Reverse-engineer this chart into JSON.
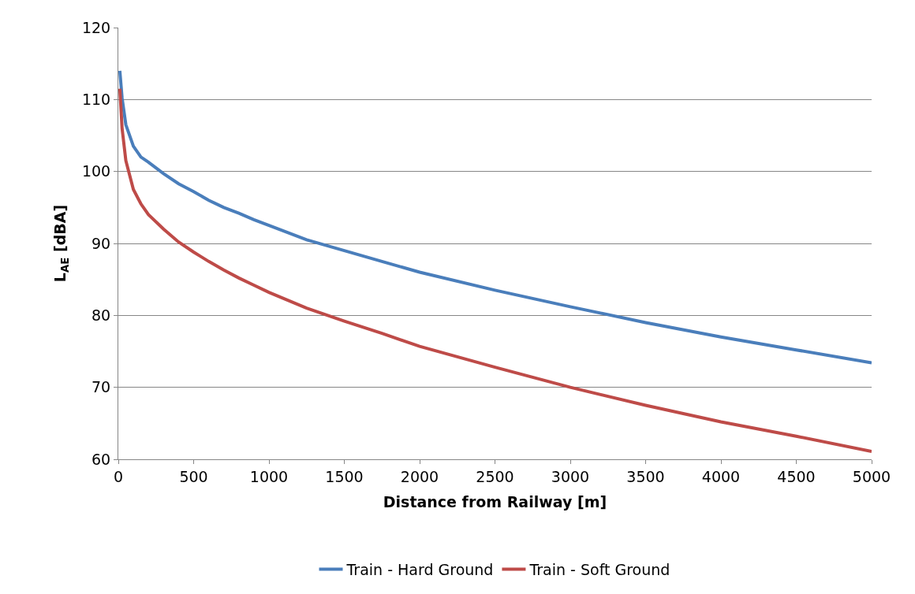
{
  "chart_data": {
    "type": "line",
    "xlabel": "Distance from Railway [m]",
    "ylabel": "L$_{AE}$ [dBA]",
    "xlim": [
      0,
      5000
    ],
    "xticks": [
      0,
      500,
      1000,
      1500,
      2000,
      2500,
      3000,
      3500,
      4000,
      4500,
      5000
    ],
    "ylim": [
      60,
      120
    ],
    "yticks": [
      60,
      70,
      80,
      90,
      100,
      110,
      120
    ],
    "grid": "y",
    "legend": "bottom",
    "marker": "none",
    "line_style": "solid",
    "x": [
      10,
      25,
      50,
      100,
      150,
      200,
      300,
      400,
      500,
      600,
      700,
      800,
      900,
      1000,
      1250,
      1500,
      1750,
      2000,
      2500,
      3000,
      3500,
      4000,
      4500,
      5000
    ],
    "series": [
      {
        "name": "Train - Hard Ground",
        "color": "#4a7ebb",
        "values": [
          114,
          110.2,
          106.5,
          103.5,
          102,
          101.3,
          99.7,
          98.3,
          97.2,
          96,
          95,
          94.2,
          93.3,
          92.5,
          90.5,
          89,
          87.5,
          86,
          83.5,
          81.2,
          79,
          77,
          75.2,
          73.4
        ]
      },
      {
        "name": "Train - Soft Ground",
        "color": "#be4b48",
        "values": [
          111.5,
          106,
          101.5,
          97.5,
          95.5,
          94,
          92,
          90.2,
          88.8,
          87.5,
          86.3,
          85.2,
          84.2,
          83.2,
          81,
          79.2,
          77.5,
          75.7,
          72.8,
          70,
          67.5,
          65.2,
          63.2,
          61.1
        ]
      }
    ]
  }
}
